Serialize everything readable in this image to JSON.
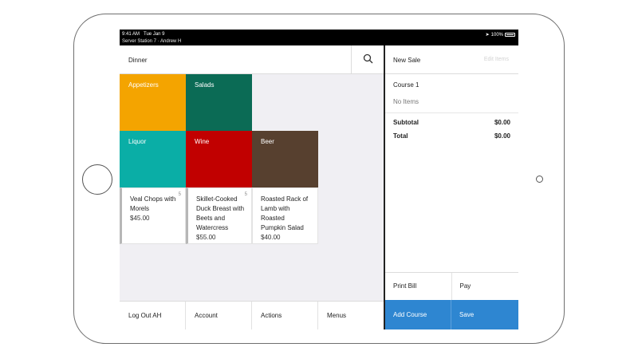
{
  "status_bar": {
    "time": "9:41 AM",
    "day": "Tue Jan 9",
    "station": "Server Station 7 · Andrew H",
    "battery": "100%"
  },
  "menu": {
    "title": "Dinner"
  },
  "categories": [
    {
      "label": "Appetizers",
      "color": "#f4a400"
    },
    {
      "label": "Salads",
      "color": "#0b6b55"
    },
    {
      "label": "Liquor",
      "color": "#0aaea6"
    },
    {
      "label": "Wine",
      "color": "#c10000"
    },
    {
      "label": "Beer",
      "color": "#57402f"
    }
  ],
  "items": [
    {
      "name": "Veal Chops with Morels",
      "price": "$45.00",
      "badge": "5"
    },
    {
      "name": "Skillet-Cooked Duck Breast with Beets and Watercress",
      "price": "$55.00",
      "badge": "5"
    },
    {
      "name": "Roasted Rack of Lamb with Roasted Pumpkin Salad",
      "price": "$40.00",
      "badge": ""
    }
  ],
  "bottom_bar": [
    "Log Out AH",
    "Account",
    "Actions",
    "Menus"
  ],
  "sale": {
    "title": "New Sale",
    "edit_label": "Edit Items",
    "course": "Course 1",
    "no_items": "No Items",
    "subtotal_label": "Subtotal",
    "subtotal_value": "$0.00",
    "total_label": "Total",
    "total_value": "$0.00",
    "print_bill": "Print Bill",
    "pay": "Pay",
    "add_course": "Add Course",
    "save": "Save"
  }
}
